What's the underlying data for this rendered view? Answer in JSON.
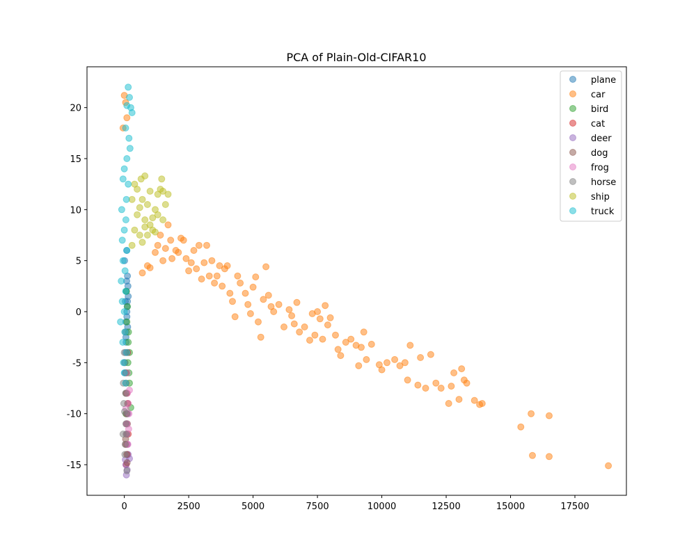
{
  "chart_data": {
    "type": "scatter",
    "title": "PCA of Plain-Old-CIFAR10",
    "xlabel": "",
    "ylabel": "",
    "xlim": [
      -1450,
      19500
    ],
    "ylim": [
      -18,
      24
    ],
    "x_ticks": [
      0,
      2500,
      5000,
      7500,
      10000,
      12500,
      15000,
      17500
    ],
    "y_ticks": [
      -15,
      -10,
      -5,
      0,
      5,
      10,
      15,
      20
    ],
    "grid": false,
    "legend_position": "top-right",
    "marker_alpha": 0.5,
    "series": [
      {
        "name": "plane",
        "color": "#1f77b4",
        "points": [
          [
            50,
            -4
          ],
          [
            80,
            -2
          ],
          [
            100,
            0
          ],
          [
            120,
            1
          ],
          [
            140,
            2.5
          ],
          [
            60,
            -1
          ],
          [
            90,
            3
          ],
          [
            110,
            0.5
          ],
          [
            70,
            -3
          ],
          [
            150,
            1.5
          ],
          [
            30,
            -5
          ],
          [
            120,
            3.5
          ],
          [
            100,
            -0.5
          ],
          [
            80,
            2
          ],
          [
            60,
            -2.5
          ],
          [
            40,
            1
          ],
          [
            130,
            -1.5
          ],
          [
            20,
            -6
          ],
          [
            10,
            5
          ],
          [
            90,
            6
          ]
        ]
      },
      {
        "name": "car",
        "color": "#ff7f0e",
        "points": [
          [
            0,
            21.2
          ],
          [
            50,
            20.5
          ],
          [
            100,
            19
          ],
          [
            -50,
            18
          ],
          [
            700,
            3.8
          ],
          [
            900,
            4.5
          ],
          [
            1000,
            4.3
          ],
          [
            1200,
            5.8
          ],
          [
            1300,
            6.5
          ],
          [
            1400,
            7.5
          ],
          [
            1500,
            5
          ],
          [
            1600,
            6.2
          ],
          [
            1700,
            8.5
          ],
          [
            1800,
            7
          ],
          [
            1850,
            5.2
          ],
          [
            2000,
            6
          ],
          [
            2100,
            5.8
          ],
          [
            2200,
            7.2
          ],
          [
            2300,
            7
          ],
          [
            2400,
            5.2
          ],
          [
            2500,
            4
          ],
          [
            2600,
            4.8
          ],
          [
            2700,
            6
          ],
          [
            2800,
            4.2
          ],
          [
            2900,
            6.5
          ],
          [
            3000,
            3.2
          ],
          [
            3100,
            4.8
          ],
          [
            3200,
            6.5
          ],
          [
            3300,
            3.5
          ],
          [
            3400,
            5
          ],
          [
            3500,
            2.8
          ],
          [
            3600,
            3.5
          ],
          [
            3700,
            4.5
          ],
          [
            3800,
            2.5
          ],
          [
            3900,
            4.2
          ],
          [
            4000,
            4.5
          ],
          [
            4100,
            1.8
          ],
          [
            4200,
            1
          ],
          [
            4300,
            -0.5
          ],
          [
            4400,
            3.5
          ],
          [
            4500,
            2.8
          ],
          [
            4700,
            1.8
          ],
          [
            4800,
            0.7
          ],
          [
            4900,
            -0.2
          ],
          [
            5000,
            2.4
          ],
          [
            5100,
            3.4
          ],
          [
            5200,
            -1
          ],
          [
            5300,
            -2.5
          ],
          [
            5400,
            1.2
          ],
          [
            5500,
            4.4
          ],
          [
            5600,
            1.6
          ],
          [
            5700,
            0.5
          ],
          [
            5800,
            0
          ],
          [
            6000,
            0.7
          ],
          [
            6200,
            -1.5
          ],
          [
            6400,
            0.2
          ],
          [
            6500,
            -0.4
          ],
          [
            6600,
            -1.2
          ],
          [
            6700,
            0.9
          ],
          [
            6800,
            -2
          ],
          [
            7000,
            -1.5
          ],
          [
            7200,
            -2.8
          ],
          [
            7300,
            -0.2
          ],
          [
            7400,
            -2.3
          ],
          [
            7500,
            0
          ],
          [
            7600,
            -0.7
          ],
          [
            7700,
            -2.7
          ],
          [
            7800,
            0.6
          ],
          [
            7900,
            -1.3
          ],
          [
            8000,
            -0.6
          ],
          [
            8200,
            -2.3
          ],
          [
            8300,
            -3.7
          ],
          [
            8400,
            -4.3
          ],
          [
            8600,
            -3
          ],
          [
            8800,
            -2.7
          ],
          [
            9000,
            -3.3
          ],
          [
            9100,
            -5.3
          ],
          [
            9200,
            -3.5
          ],
          [
            9300,
            -2
          ],
          [
            9400,
            -4.7
          ],
          [
            9600,
            -3.2
          ],
          [
            9900,
            -5.2
          ],
          [
            10000,
            -5.7
          ],
          [
            10200,
            -5
          ],
          [
            10500,
            -4.7
          ],
          [
            10700,
            -5.3
          ],
          [
            10900,
            -5
          ],
          [
            11000,
            -6.7
          ],
          [
            11100,
            -3.3
          ],
          [
            11400,
            -7.2
          ],
          [
            11500,
            -4.5
          ],
          [
            11700,
            -7.5
          ],
          [
            11900,
            -4.2
          ],
          [
            12100,
            -7
          ],
          [
            12300,
            -7.5
          ],
          [
            12600,
            -9
          ],
          [
            12700,
            -7.3
          ],
          [
            12800,
            -6
          ],
          [
            13000,
            -8.6
          ],
          [
            13100,
            -5.6
          ],
          [
            13200,
            -6.7
          ],
          [
            13300,
            -7
          ],
          [
            13600,
            -8.7
          ],
          [
            13800,
            -9.1
          ],
          [
            13900,
            -9
          ],
          [
            15400,
            -11.3
          ],
          [
            15800,
            -10
          ],
          [
            15850,
            -14.1
          ],
          [
            16500,
            -10.2
          ],
          [
            16500,
            -14.2
          ],
          [
            18800,
            -15.1
          ]
        ]
      },
      {
        "name": "bird",
        "color": "#2ca02c",
        "points": [
          [
            100,
            -1
          ],
          [
            150,
            -3
          ],
          [
            200,
            -4
          ],
          [
            250,
            -9.4
          ],
          [
            180,
            -6
          ],
          [
            120,
            0.5
          ],
          [
            80,
            2
          ],
          [
            160,
            -2
          ],
          [
            140,
            -5
          ],
          [
            200,
            -7
          ],
          [
            90,
            -8
          ],
          [
            60,
            -10
          ]
        ]
      },
      {
        "name": "cat",
        "color": "#d62728",
        "points": [
          [
            100,
            -8
          ],
          [
            150,
            -12
          ],
          [
            120,
            -14
          ],
          [
            80,
            -11
          ],
          [
            60,
            -6
          ],
          [
            140,
            -9
          ],
          [
            90,
            -13
          ],
          [
            70,
            -15
          ],
          [
            110,
            -10
          ],
          [
            130,
            -4
          ]
        ]
      },
      {
        "name": "deer",
        "color": "#9467bd",
        "points": [
          [
            100,
            -12
          ],
          [
            150,
            -14
          ],
          [
            200,
            -14.4
          ],
          [
            80,
            -16
          ],
          [
            120,
            -13
          ],
          [
            60,
            -15
          ],
          [
            140,
            -10
          ],
          [
            90,
            -11
          ],
          [
            40,
            -14.5
          ],
          [
            110,
            -15.5
          ]
        ]
      },
      {
        "name": "dog",
        "color": "#8c564b",
        "points": [
          [
            80,
            -10
          ],
          [
            100,
            -12
          ],
          [
            60,
            -8
          ],
          [
            120,
            -11
          ],
          [
            90,
            -14
          ],
          [
            40,
            -13
          ],
          [
            130,
            -9
          ],
          [
            70,
            -7
          ],
          [
            110,
            -14.8
          ],
          [
            50,
            -12.5
          ]
        ]
      },
      {
        "name": "frog",
        "color": "#e377c2",
        "points": [
          [
            200,
            -7.7
          ],
          [
            150,
            -9
          ],
          [
            100,
            -11
          ],
          [
            180,
            -10
          ],
          [
            120,
            -8
          ],
          [
            90,
            -12
          ],
          [
            60,
            -9.5
          ],
          [
            140,
            -13
          ],
          [
            170,
            -11.5
          ],
          [
            110,
            -6
          ]
        ]
      },
      {
        "name": "horse",
        "color": "#7f7f7f",
        "points": [
          [
            0,
            -5
          ],
          [
            50,
            -8
          ],
          [
            100,
            -10
          ],
          [
            -50,
            -12
          ],
          [
            20,
            -14
          ],
          [
            80,
            -6
          ],
          [
            -20,
            -9
          ],
          [
            60,
            -11
          ],
          [
            40,
            -13
          ],
          [
            -40,
            -7
          ],
          [
            100,
            -15.6
          ],
          [
            0,
            -4
          ],
          [
            30,
            -2
          ],
          [
            70,
            -12
          ],
          [
            10,
            -9.8
          ]
        ]
      },
      {
        "name": "ship",
        "color": "#bcbd22",
        "points": [
          [
            300,
            6.5
          ],
          [
            400,
            8
          ],
          [
            500,
            9.5
          ],
          [
            600,
            10.2
          ],
          [
            700,
            11
          ],
          [
            800,
            9
          ],
          [
            900,
            10.5
          ],
          [
            1000,
            8.5
          ],
          [
            1100,
            9.2
          ],
          [
            1200,
            10
          ],
          [
            1300,
            11.5
          ],
          [
            1400,
            12
          ],
          [
            1500,
            11.8
          ],
          [
            1600,
            10.5
          ],
          [
            1700,
            11.5
          ],
          [
            1450,
            13
          ],
          [
            800,
            13.3
          ],
          [
            650,
            13
          ],
          [
            1100,
            8
          ],
          [
            900,
            7.5
          ],
          [
            700,
            6.8
          ],
          [
            600,
            7.5
          ],
          [
            500,
            12
          ],
          [
            400,
            12.5
          ],
          [
            300,
            11
          ],
          [
            1000,
            11.8
          ],
          [
            1300,
            9.5
          ],
          [
            1500,
            9
          ],
          [
            1200,
            7.8
          ],
          [
            800,
            8.3
          ]
        ]
      },
      {
        "name": "truck",
        "color": "#17becf",
        "points": [
          [
            150,
            22
          ],
          [
            200,
            21
          ],
          [
            100,
            20.2
          ],
          [
            250,
            20
          ],
          [
            300,
            19.5
          ],
          [
            50,
            18
          ],
          [
            180,
            17
          ],
          [
            220,
            16
          ],
          [
            100,
            15
          ],
          [
            0,
            14
          ],
          [
            -50,
            13
          ],
          [
            150,
            12.5
          ],
          [
            80,
            11
          ],
          [
            -100,
            10
          ],
          [
            60,
            9
          ],
          [
            0,
            8
          ],
          [
            -80,
            7
          ],
          [
            100,
            6
          ],
          [
            -50,
            5
          ],
          [
            30,
            4
          ],
          [
            -120,
            3
          ],
          [
            50,
            2
          ],
          [
            -80,
            1
          ],
          [
            0,
            0
          ],
          [
            -150,
            -1
          ],
          [
            20,
            -2
          ],
          [
            -60,
            -3
          ],
          [
            100,
            -4
          ],
          [
            -30,
            -5
          ],
          [
            0,
            -6
          ],
          [
            50,
            -7
          ]
        ]
      }
    ]
  }
}
